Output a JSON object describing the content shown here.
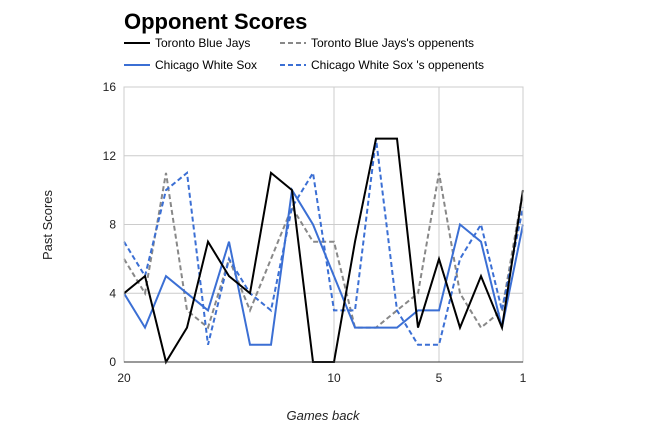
{
  "chart_data": {
    "type": "line",
    "title": "Opponent Scores",
    "xlabel": "Games back",
    "ylabel": "Past Scores",
    "xlim": [
      20,
      1
    ],
    "ylim": [
      0,
      16
    ],
    "x_ticks": [
      "20",
      "10",
      "5",
      "1"
    ],
    "x_tick_values": [
      20,
      10,
      5,
      1
    ],
    "y_ticks": [
      "0",
      "4",
      "8",
      "12",
      "16"
    ],
    "y_tick_values": [
      0,
      4,
      8,
      12,
      16
    ],
    "grid": true,
    "legend_position": "top",
    "x": [
      20,
      19,
      18,
      17,
      16,
      15,
      14,
      13,
      12,
      11,
      10,
      9,
      8,
      7,
      6,
      5,
      4,
      3,
      2,
      1
    ],
    "series": [
      {
        "name": "Toronto Blue Jays",
        "color": "#000000",
        "dash": "solid",
        "values": [
          4,
          5,
          0,
          2,
          7,
          5,
          4,
          11,
          10,
          0,
          0,
          7,
          13,
          13,
          2,
          6,
          2,
          5,
          2,
          10
        ]
      },
      {
        "name": "Toronto Blue Jays's oppenents",
        "color": "#888888",
        "dash": "dashed",
        "values": [
          6,
          4,
          11,
          3,
          2,
          6,
          3,
          6,
          9,
          7,
          7,
          2,
          2,
          3,
          4,
          11,
          4,
          2,
          3,
          10
        ]
      },
      {
        "name": "Chicago White Sox",
        "color": "#3b6fd4",
        "dash": "solid",
        "values": [
          4,
          2,
          5,
          4,
          3,
          7,
          1,
          1,
          10,
          8,
          5,
          2,
          2,
          2,
          3,
          3,
          8,
          7,
          2,
          8
        ]
      },
      {
        "name": "Chicago White Sox 's oppenents",
        "color": "#3b6fd4",
        "dash": "dashed",
        "values": [
          7,
          5,
          10,
          11,
          1,
          6,
          4,
          3,
          9,
          11,
          3,
          3,
          13,
          3,
          1,
          1,
          6,
          8,
          3,
          9
        ]
      }
    ]
  }
}
